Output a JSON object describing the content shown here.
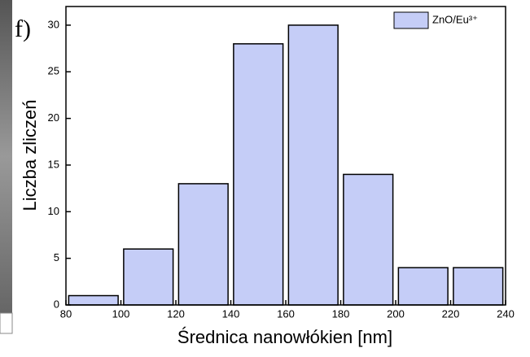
{
  "chart_data": {
    "type": "histogram",
    "panel_label": "f)",
    "xlabel": "Średnica nanowłókien [nm]",
    "ylabel": "Liczba zliczeń",
    "bins": [
      80,
      100,
      120,
      140,
      160,
      180,
      200,
      220,
      240
    ],
    "series": [
      {
        "name": "ZnO/Eu³⁺",
        "color": "#c5cdf7",
        "values": [
          1,
          6,
          13,
          28,
          30,
          14,
          4,
          4
        ]
      }
    ],
    "xlim": [
      80,
      240
    ],
    "xticks": [
      80,
      100,
      120,
      140,
      160,
      180,
      200,
      220,
      240
    ],
    "ylim": [
      0,
      32
    ],
    "yticks": [
      0,
      5,
      10,
      15,
      20,
      25,
      30
    ],
    "legend": "upper right"
  }
}
